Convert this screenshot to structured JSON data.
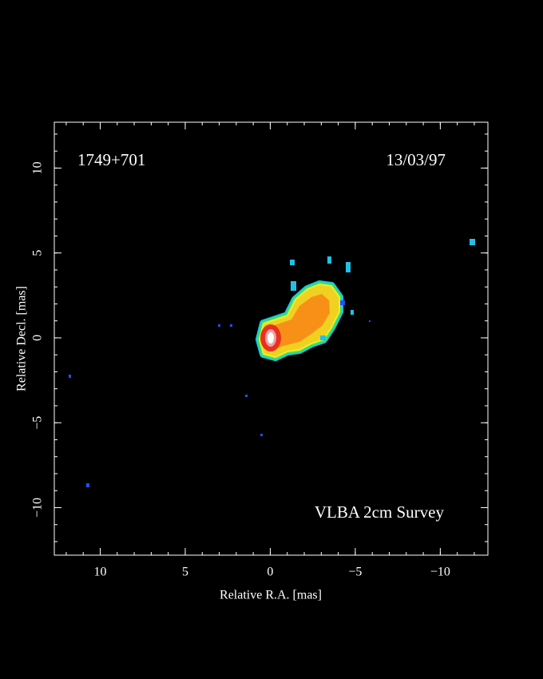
{
  "chart_data": {
    "type": "image",
    "source": "1749+701",
    "date": "13/03/97",
    "annotation": "VLBA 2cm Survey",
    "x_label": "Relative R.A. [mas]",
    "y_label": "Relative Decl. [mas]",
    "xlim": [
      12.7,
      -12.8
    ],
    "ylim": [
      -12.8,
      12.7
    ],
    "xticks": [
      10,
      5,
      0,
      {
        "value": -5,
        "label": "−5"
      },
      {
        "value": -10,
        "label": "−10"
      }
    ],
    "yticks": [
      {
        "value": -10,
        "label": "−10"
      },
      {
        "value": -5,
        "label": "−5"
      },
      0,
      5,
      10
    ]
  }
}
